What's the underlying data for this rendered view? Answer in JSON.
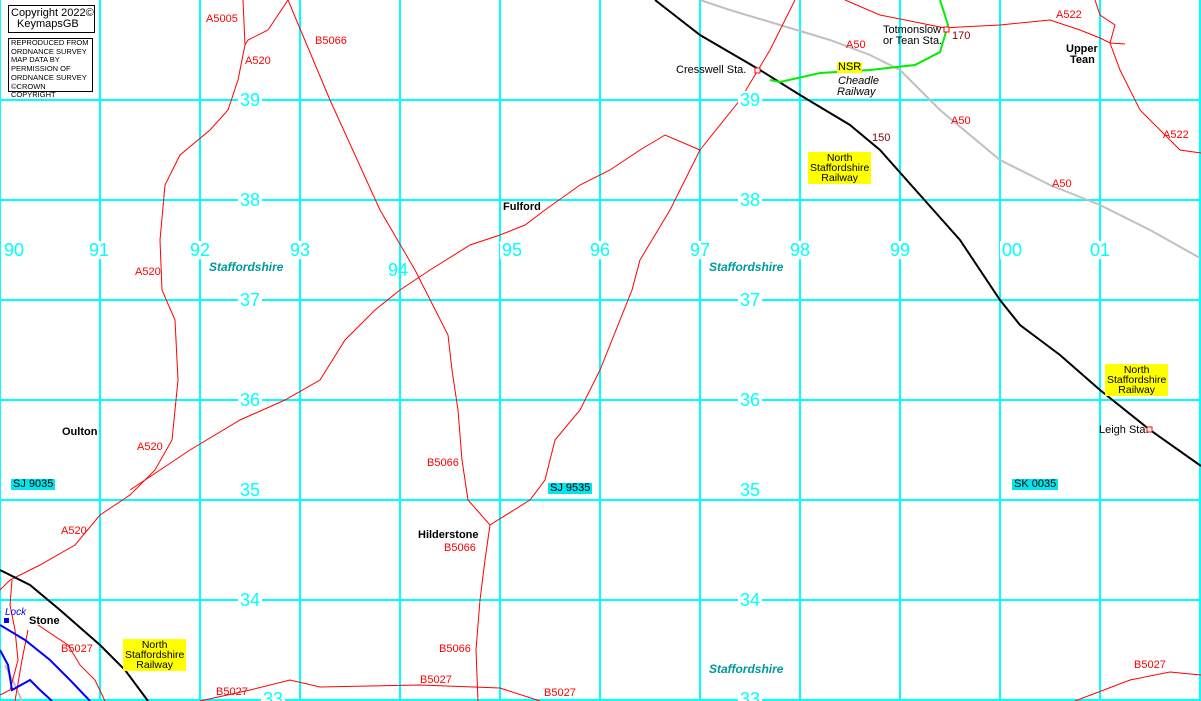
{
  "copyright": {
    "line1": "Copyright 2022©",
    "line2": "KeymapsGB"
  },
  "os_notice": [
    "REPRODUCED FROM",
    "ORDNANCE SURVEY",
    "MAP DATA BY",
    "PERMISSION OF",
    "ORDNANCE SURVEY",
    "©CROWN COPYRIGHT"
  ],
  "colors": {
    "grid": "#00ffff",
    "road": "#ff0000",
    "railway": "#000000",
    "trunk_road": "#c0c0c0",
    "heritage_railway": "#00ee00",
    "canal": "#0000ff",
    "railway_label_bg": "#ffff00",
    "gridref_bg": "#00e5ee"
  },
  "eastings": [
    "90",
    "91",
    "92",
    "93",
    "94",
    "95",
    "96",
    "97",
    "98",
    "99",
    "00",
    "01"
  ],
  "northings": [
    "39",
    "38",
    "37",
    "36",
    "35",
    "34",
    "33"
  ],
  "roads": {
    "a5005": "A5005",
    "a520_1": "A520",
    "a520_2": "A520",
    "a520_3": "A520",
    "a520_4": "A520",
    "b5066_1": "B5066",
    "b5066_2": "B5066",
    "b5066_3": "B5066",
    "b5066_4": "B5066",
    "a50_1": "A50",
    "a50_2": "A50",
    "a50_3": "A50",
    "a522_1": "A522",
    "a522_2": "A522",
    "b5027_1": "B5027",
    "b5027_2": "B5027",
    "b5027_3": "B5027",
    "b5027_4": "B5027",
    "b5027_5": "B5027"
  },
  "places": {
    "fulford": "Fulford",
    "oulton": "Oulton",
    "hilderstone": "Hilderstone",
    "stone": "Stone",
    "upper": "Upper",
    "tean": "Tean",
    "lock": "Lock"
  },
  "stations": {
    "cresswell": "Cresswell Sta.",
    "totmonslow1": "Totmonslow",
    "totmonslow2": "or Tean Sta.",
    "leigh": "Leigh Sta."
  },
  "heights": {
    "h170": "170",
    "h150": "150"
  },
  "counties": {
    "c1": "Staffordshire",
    "c2": "Staffordshire",
    "c3": "Staffordshire"
  },
  "railways": {
    "nsr": "NSR",
    "cheadle1": "Cheadle",
    "cheadle2": "Railway",
    "north": "North",
    "staffs": "Staffordshire",
    "railway": "Railway"
  },
  "grid_refs": {
    "sj9035": "SJ 9035",
    "sj9535": "SJ 9535",
    "sk0035": "SK 0035"
  }
}
